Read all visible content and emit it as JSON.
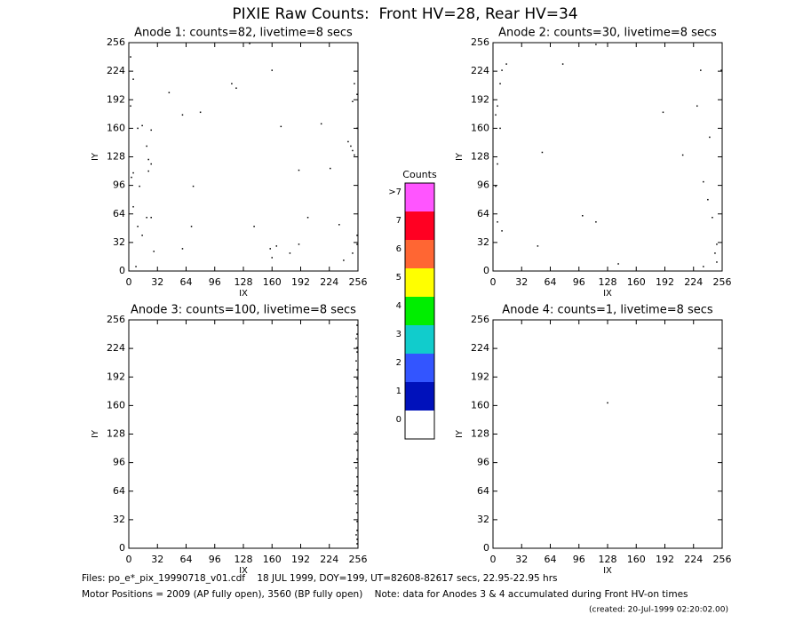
{
  "header": {
    "title": "PIXIE Raw Counts:  Front HV=28, Rear HV=34"
  },
  "footer": {
    "files": "Files: po_e*_pix_19990718_v01.cdf    18 JUL 1999, DOY=199, UT=82608-82617 secs, 22.95-22.95 hrs",
    "motor": "Motor Positions = 2009 (AP fully open), 3560 (BP fully open)    Note: data for Anodes 3 & 4 accumulated during Front HV-on times",
    "created": "(created: 20-Jul-1999 02:20:02.00)"
  },
  "chart_data": [
    {
      "type": "scatter",
      "title": "Anode 1: counts=82, livetime=8 secs",
      "xlabel": "IX",
      "ylabel": "IY",
      "color": "#000000",
      "x": [
        2,
        5,
        2,
        10,
        15,
        25,
        20,
        22,
        25,
        22,
        5,
        3,
        12,
        5,
        25,
        10,
        20,
        28,
        60,
        70,
        72,
        60,
        45,
        80,
        115,
        120,
        135,
        140,
        160,
        170,
        158,
        165,
        160,
        180,
        190,
        200,
        190,
        215,
        225,
        235,
        240,
        245,
        248,
        250,
        252,
        250,
        252,
        255,
        255,
        255,
        255,
        250,
        8,
        15
      ],
      "y": [
        240,
        215,
        185,
        160,
        163,
        158,
        140,
        125,
        120,
        112,
        110,
        105,
        95,
        72,
        60,
        50,
        60,
        22,
        25,
        50,
        95,
        175,
        200,
        178,
        210,
        205,
        255,
        50,
        225,
        162,
        25,
        28,
        15,
        20,
        30,
        60,
        113,
        165,
        115,
        52,
        12,
        145,
        140,
        135,
        130,
        190,
        210,
        198,
        160,
        40,
        30,
        20,
        5,
        40
      ],
      "xlim": [
        0,
        256
      ],
      "ylim": [
        0,
        256
      ],
      "xticks": [
        0,
        32,
        64,
        96,
        128,
        160,
        192,
        224,
        256
      ],
      "yticks": [
        0,
        32,
        64,
        96,
        128,
        160,
        192,
        224,
        256
      ]
    },
    {
      "type": "scatter",
      "title": "Anode 2: counts=30, livetime=8 secs",
      "xlabel": "IX",
      "ylabel": "IY",
      "color": "#000000",
      "x": [
        15,
        78,
        115,
        3,
        5,
        8,
        10,
        3,
        5,
        10,
        55,
        100,
        115,
        50,
        140,
        190,
        212,
        228,
        232,
        235,
        240,
        245,
        250,
        248,
        250,
        255,
        242,
        235,
        8,
        5
      ],
      "y": [
        232,
        232,
        254,
        175,
        185,
        210,
        225,
        95,
        55,
        45,
        133,
        62,
        55,
        28,
        8,
        178,
        130,
        185,
        225,
        100,
        80,
        60,
        30,
        20,
        10,
        225,
        150,
        5,
        160,
        120
      ],
      "xlim": [
        0,
        256
      ],
      "ylim": [
        0,
        256
      ],
      "xticks": [
        0,
        32,
        64,
        96,
        128,
        160,
        192,
        224,
        256
      ],
      "yticks": [
        0,
        32,
        64,
        96,
        128,
        160,
        192,
        224,
        256
      ]
    },
    {
      "type": "scatter",
      "title": "Anode 3: counts=100, livetime=8 secs",
      "xlabel": "IX",
      "ylabel": "IY",
      "color": "#000000",
      "x": [
        255,
        255,
        254,
        255,
        255,
        254,
        255,
        255,
        255,
        254,
        255,
        255,
        255,
        254,
        255,
        255,
        255,
        254,
        255,
        255,
        255,
        254,
        255,
        255,
        255,
        254,
        255,
        255
      ],
      "y": [
        250,
        240,
        235,
        225,
        220,
        210,
        200,
        190,
        180,
        170,
        160,
        150,
        140,
        130,
        120,
        110,
        100,
        90,
        80,
        70,
        60,
        50,
        40,
        30,
        20,
        15,
        10,
        5
      ],
      "xlim": [
        0,
        256
      ],
      "ylim": [
        0,
        256
      ],
      "xticks": [
        0,
        32,
        64,
        96,
        128,
        160,
        192,
        224,
        256
      ],
      "yticks": [
        0,
        32,
        64,
        96,
        128,
        160,
        192,
        224,
        256
      ]
    },
    {
      "type": "scatter",
      "title": "Anode 4: counts=1, livetime=8 secs",
      "xlabel": "IX",
      "ylabel": "IY",
      "color": "#000000",
      "x": [
        128
      ],
      "y": [
        163
      ],
      "xlim": [
        0,
        256
      ],
      "ylim": [
        0,
        256
      ],
      "xticks": [
        0,
        32,
        64,
        96,
        128,
        160,
        192,
        224,
        256
      ],
      "yticks": [
        0,
        32,
        64,
        96,
        128,
        160,
        192,
        224,
        256
      ]
    },
    {
      "type": "colorbar",
      "title": "Counts",
      "categories": [
        "0",
        "1",
        "2",
        "3",
        "4",
        "5",
        "6",
        "7",
        ">7"
      ],
      "colors": [
        "#ffffff",
        "#0011bb",
        "#3355ff",
        "#11cccc",
        "#00ee00",
        "#ffff00",
        "#ff6633",
        "#ff0022",
        "#ff55ff"
      ]
    }
  ]
}
